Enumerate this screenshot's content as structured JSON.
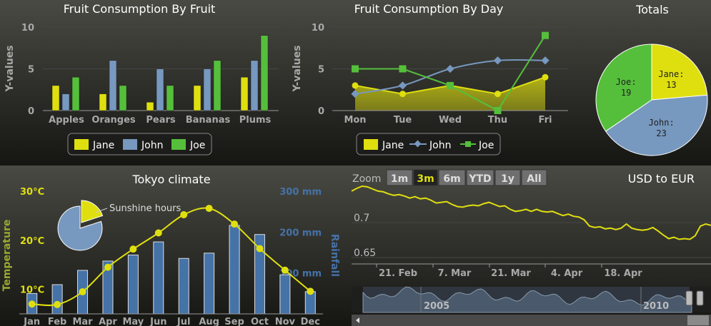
{
  "colors": {
    "jane": "#dfdf0f",
    "john": "#7798bf",
    "joe": "#55bf3b",
    "rain": "#4572a7",
    "currency": "#dfdf0f",
    "grid": "#444444"
  },
  "chart_data": [
    {
      "type": "bar",
      "title": "Fruit Consumption By Fruit",
      "ylabel": "Y-values",
      "ylim": [
        0,
        10
      ],
      "yticks": [
        "0",
        "5",
        "10"
      ],
      "categories": [
        "Apples",
        "Oranges",
        "Pears",
        "Bananas",
        "Plums"
      ],
      "series": [
        {
          "name": "Jane",
          "values": [
            3,
            2,
            1,
            3,
            4
          ]
        },
        {
          "name": "John",
          "values": [
            2,
            6,
            5,
            5,
            6
          ]
        },
        {
          "name": "Joe",
          "values": [
            4,
            3,
            3,
            6,
            9
          ]
        }
      ],
      "legend": "bottom"
    },
    {
      "type": "line",
      "title": "Fruit Consumption By Day",
      "ylabel": "Y-values",
      "ylim": [
        0,
        10
      ],
      "yticks": [
        "0",
        "5",
        "10"
      ],
      "categories": [
        "Mon",
        "Tue",
        "Wed",
        "Thu",
        "Fri"
      ],
      "series": [
        {
          "name": "Jane",
          "values": [
            3,
            2,
            3,
            2,
            4
          ],
          "style": "area"
        },
        {
          "name": "John",
          "values": [
            2,
            3,
            5,
            6,
            6
          ],
          "style": "spline"
        },
        {
          "name": "Joe",
          "values": [
            5,
            5,
            3,
            0,
            9
          ],
          "style": "line"
        }
      ],
      "legend": "bottom"
    },
    {
      "type": "pie",
      "title": "Totals",
      "slices": [
        {
          "name": "Jane",
          "value": 13,
          "label": "Jane:",
          "valuelabel": "13"
        },
        {
          "name": "John",
          "value": 23,
          "label": "John:",
          "valuelabel": "23"
        },
        {
          "name": "Joe",
          "value": 19,
          "label": "Joe:",
          "valuelabel": "19"
        }
      ]
    },
    {
      "type": "bar",
      "title": "Tokyo climate",
      "categories": [
        "Jan",
        "Feb",
        "Mar",
        "Apr",
        "May",
        "Jun",
        "Jul",
        "Aug",
        "Sep",
        "Oct",
        "Nov",
        "Dec"
      ],
      "left_axis": {
        "label": "Temperature",
        "ticks": [
          "10°C",
          "20°C",
          "30°C"
        ],
        "ylim": [
          5,
          30
        ]
      },
      "right_axis": {
        "label": "Rainfall",
        "ticks": [
          "100 mm",
          "200 mm",
          "300 mm"
        ],
        "ylim": [
          0,
          300
        ]
      },
      "series": [
        {
          "name": "Rainfall",
          "style": "column",
          "values": [
            49.9,
            71.5,
            106.4,
            129.2,
            144.0,
            176.0,
            135.6,
            148.5,
            216.4,
            194.1,
            95.6,
            54.4
          ]
        },
        {
          "name": "Temperature",
          "style": "spline",
          "values": [
            7.0,
            6.9,
            9.5,
            14.5,
            18.2,
            21.5,
            25.2,
            26.5,
            23.3,
            18.3,
            13.9,
            9.6
          ]
        }
      ],
      "inset_pie": {
        "label": "Sunshine hours",
        "values": [
          20,
          80
        ]
      }
    },
    {
      "type": "line",
      "title": "USD to EUR",
      "ylim": [
        0.65,
        0.75
      ],
      "yticks": [
        "0.65",
        "0.7"
      ],
      "xticks": [
        "21. Feb",
        "7. Mar",
        "21. Mar",
        "4. Apr",
        "18. Apr"
      ],
      "values": [
        0.745,
        0.749,
        0.752,
        0.751,
        0.748,
        0.745,
        0.744,
        0.741,
        0.739,
        0.74,
        0.738,
        0.735,
        0.737,
        0.734,
        0.735,
        0.732,
        0.728,
        0.729,
        0.73,
        0.726,
        0.723,
        0.722,
        0.724,
        0.725,
        0.724,
        0.727,
        0.729,
        0.726,
        0.723,
        0.724,
        0.719,
        0.716,
        0.717,
        0.719,
        0.716,
        0.719,
        0.716,
        0.715,
        0.716,
        0.713,
        0.71,
        0.712,
        0.709,
        0.708,
        0.704,
        0.695,
        0.693,
        0.694,
        0.691,
        0.692,
        0.69,
        0.692,
        0.698,
        0.692,
        0.69,
        0.689,
        0.69,
        0.693,
        0.688,
        0.682,
        0.677,
        0.679,
        0.676,
        0.677,
        0.676,
        0.681,
        0.695,
        0.698,
        0.696
      ]
    }
  ],
  "zoom": {
    "label": "Zoom",
    "buttons": [
      "1m",
      "3m",
      "6m",
      "YTD",
      "1y",
      "All"
    ],
    "selected": "3m"
  },
  "navigator": {
    "labels": [
      "2005",
      "2010"
    ]
  }
}
